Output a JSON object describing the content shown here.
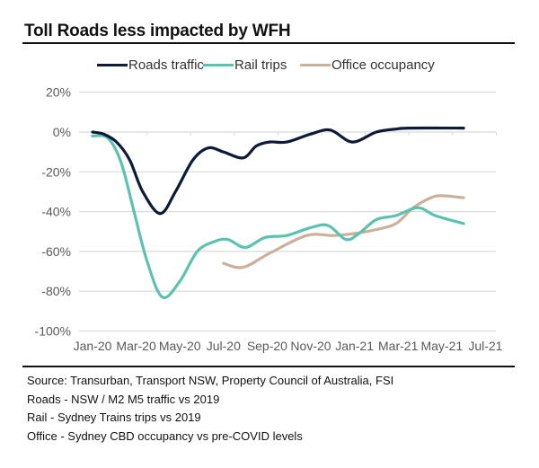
{
  "title": "Toll Roads less impacted by WFH",
  "legend": [
    {
      "label": "Roads traffic",
      "color": "#0f1a38"
    },
    {
      "label": "Rail trips",
      "color": "#5cc2b0"
    },
    {
      "label": "Office occupancy",
      "color": "#cbb09c"
    }
  ],
  "notes": [
    "Source: Transurban, Transport NSW, Property Council of Australia, FSI",
    "Roads - NSW / M2 M5 traffic vs 2019",
    "Rail - Sydney Trains trips vs 2019",
    "Office - Sydney CBD occupancy vs pre-COVID levels"
  ],
  "chart_data": {
    "type": "line",
    "title": "Toll Roads less impacted by WFH",
    "xlabel": "",
    "ylabel": "",
    "x_unit": "months since Jan-20",
    "x_ticks": [
      0,
      2,
      4,
      6,
      8,
      10,
      12,
      14,
      16,
      18
    ],
    "x_tick_labels": [
      "Jan-20",
      "Mar-20",
      "May-20",
      "Jul-20",
      "Sep-20",
      "Nov-20",
      "Jan-21",
      "Mar-21",
      "May-21",
      "Jul-21"
    ],
    "xlim": [
      0,
      18
    ],
    "y_ticks": [
      20,
      0,
      -20,
      -40,
      -60,
      -80,
      -100
    ],
    "y_tick_labels": [
      "20%",
      "0%",
      "-20%",
      "-40%",
      "-60%",
      "-80%",
      "-100%"
    ],
    "ylim": [
      -100,
      20
    ],
    "grid": true,
    "legend_position": "top",
    "series": [
      {
        "name": "Roads traffic",
        "color": "#0f1a38",
        "x": [
          0,
          0.5,
          1.1,
          1.7,
          2.3,
          3.1,
          3.8,
          4.6,
          5.3,
          6.0,
          6.9,
          7.5,
          8.1,
          8.9,
          10.0,
          10.9,
          11.9,
          13.0,
          13.9,
          14.5,
          17.0
        ],
        "y": [
          0,
          -1,
          -5,
          -14,
          -30,
          -41,
          -30,
          -14,
          -8,
          -10,
          -13,
          -7,
          -5,
          -5,
          -1,
          1,
          -5,
          0,
          1.5,
          2,
          2
        ]
      },
      {
        "name": "Rail trips",
        "color": "#5cc2b0",
        "x": [
          0,
          0.7,
          1.3,
          1.9,
          2.5,
          3.2,
          4.0,
          4.8,
          5.6,
          6.2,
          7.0,
          7.9,
          8.9,
          10.0,
          10.8,
          11.6,
          12.2,
          13.0,
          13.9,
          14.9,
          15.7,
          17.0
        ],
        "y": [
          -2,
          -3,
          -15,
          -40,
          -65,
          -83,
          -75,
          -60,
          -55,
          -54,
          -58,
          -53,
          -52,
          -48,
          -47,
          -54,
          -51,
          -44,
          -42,
          -38,
          -42,
          -46
        ]
      },
      {
        "name": "Office occupancy",
        "color": "#cbb09c",
        "x": [
          6.0,
          6.9,
          8.1,
          9.8,
          11.0,
          12.0,
          13.0,
          13.9,
          14.7,
          15.5,
          16.0,
          17.0
        ],
        "y": [
          -66,
          -68,
          -61,
          -52,
          -52,
          -51,
          -49,
          -46,
          -38,
          -33,
          -32,
          -33
        ]
      }
    ]
  }
}
